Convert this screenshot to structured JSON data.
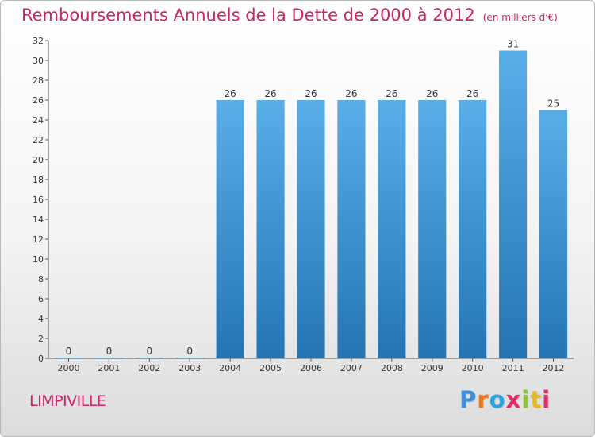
{
  "chart_data": {
    "type": "bar",
    "title": "Remboursements Annuels de la Dette de 2000 à 2012",
    "subtitle": "(en milliers d'€)",
    "categories": [
      "2000",
      "2001",
      "2002",
      "2003",
      "2004",
      "2005",
      "2006",
      "2007",
      "2008",
      "2009",
      "2010",
      "2011",
      "2012"
    ],
    "values": [
      0,
      0,
      0,
      0,
      26,
      26,
      26,
      26,
      26,
      26,
      26,
      31,
      25
    ],
    "ylim": [
      0,
      32
    ],
    "yticks": [
      0,
      2,
      4,
      6,
      8,
      10,
      12,
      14,
      16,
      18,
      20,
      22,
      24,
      26,
      28,
      30,
      32
    ],
    "grid": false,
    "legend": "none",
    "colors": {
      "bar_light": "#5aaee8",
      "bar_dark": "#2474b4",
      "axis": "#555555",
      "title": "#cc2266"
    }
  },
  "footer": {
    "city": "LIMPIVILLE",
    "brand": "Proxiti",
    "brand_colors": [
      "#3b8fd9",
      "#e87a1d",
      "#2aa3e0",
      "#e02c6d",
      "#8cc23f",
      "#e8b81d",
      "#e02c6d"
    ]
  }
}
